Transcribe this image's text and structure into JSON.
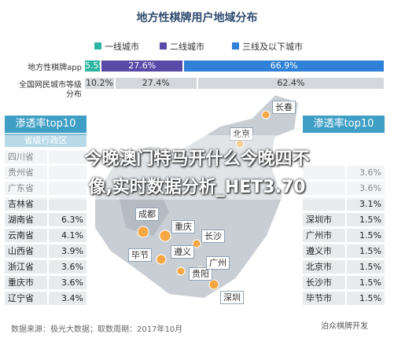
{
  "header": {
    "title": "地方性棋牌用户地域分布"
  },
  "legend": [
    {
      "name": "一线城市",
      "color": "#2cb5a0"
    },
    {
      "name": "二线城市",
      "color": "#5a4aa8"
    },
    {
      "name": "三线及以下城市",
      "color": "#2f80d6"
    }
  ],
  "bars": [
    {
      "label": "地方性棋牌app",
      "values": [
        5.5,
        27.6,
        66.9
      ],
      "value_labels": [
        "5.5%",
        "27.6%",
        "66.9%"
      ]
    },
    {
      "label": "全国网民城市等级",
      "label2": "分布",
      "values": [
        10.2,
        27.4,
        62.4
      ],
      "value_labels": [
        "10.2%",
        "27.4%",
        "62.4%"
      ]
    }
  ],
  "left_table": {
    "title": "渗透率top10",
    "subtitle": "省级行政区",
    "rows": [
      [
        "四川省"
      ],
      [
        "贵州省"
      ],
      [
        "广东省"
      ],
      [
        "吉林省"
      ],
      [
        "湖南省",
        "6.3%"
      ],
      [
        "云南省",
        "4.1%"
      ],
      [
        "山西省",
        "3.9%"
      ],
      [
        "浙江省",
        "3.6%"
      ],
      [
        "重庆市",
        "3.6%"
      ],
      [
        "辽宁省",
        "3.4%"
      ]
    ]
  },
  "right_table": {
    "title": "渗透率top10",
    "rows": [
      [
        "3.6%"
      ],
      [
        "3.6%"
      ],
      [
        "3.1%"
      ],
      [
        "深圳市",
        "1.5%"
      ],
      [
        "广州市",
        "1.5%"
      ],
      [
        "遵义市",
        "1.5%"
      ],
      [
        "北京市",
        "1.5%"
      ],
      [
        "长沙市",
        "1.5%"
      ],
      [
        "毕节市",
        "1.5%"
      ]
    ]
  },
  "map_labels": [
    "北京",
    "长春",
    "成都",
    "重庆",
    "长沙",
    "遵义",
    "毕节",
    "贵阳",
    "广州",
    "深圳"
  ],
  "overlay": {
    "line1": "今晚澳门特马开什么今晚四不",
    "line2": "像,实时数据分析_HET3.70"
  },
  "footer": {
    "source": "数据来源：极光大数据；取数周期：2017年10月",
    "watermark": "泊众棋牌开发"
  }
}
